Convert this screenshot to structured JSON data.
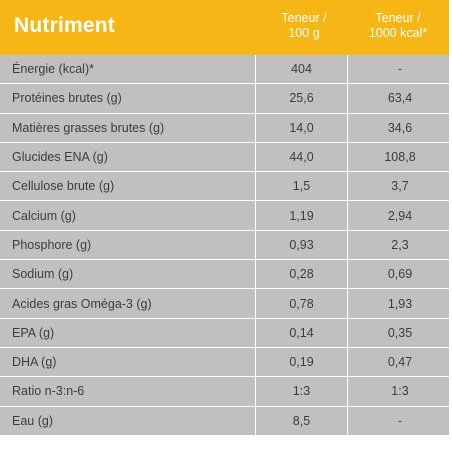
{
  "header": {
    "title": "Nutriment",
    "col1_line1": "Teneur /",
    "col1_line2": "100 g",
    "col2_line1": "Teneur /",
    "col2_line2": "1000 kcal*"
  },
  "colors": {
    "header_bg": "#f6b716",
    "row_bg": "#c0c0c0",
    "text": "#3c3c3c"
  },
  "rows": [
    {
      "label": "Énergie (kcal)*",
      "per100g": "404",
      "per1000kcal": "-"
    },
    {
      "label": "Protéines brutes (g)",
      "per100g": "25,6",
      "per1000kcal": "63,4"
    },
    {
      "label": "Matières grasses brutes (g)",
      "per100g": "14,0",
      "per1000kcal": "34,6"
    },
    {
      "label": "Glucides ENA (g)",
      "per100g": "44,0",
      "per1000kcal": "108,8"
    },
    {
      "label": "Cellulose brute (g)",
      "per100g": "1,5",
      "per1000kcal": "3,7"
    },
    {
      "label": "Calcium (g)",
      "per100g": "1,19",
      "per1000kcal": "2,94"
    },
    {
      "label": "Phosphore (g)",
      "per100g": "0,93",
      "per1000kcal": "2,3"
    },
    {
      "label": "Sodium (g)",
      "per100g": "0,28",
      "per1000kcal": "0,69"
    },
    {
      "label": "Acides gras Oméga-3 (g)",
      "per100g": "0,78",
      "per1000kcal": "1,93"
    },
    {
      "label": "EPA (g)",
      "per100g": "0,14",
      "per1000kcal": "0,35"
    },
    {
      "label": "DHA (g)",
      "per100g": "0,19",
      "per1000kcal": "0,47"
    },
    {
      "label": "Ratio n-3:n-6",
      "per100g": "1:3",
      "per1000kcal": "1:3"
    },
    {
      "label": "Eau (g)",
      "per100g": "8,5",
      "per1000kcal": "-"
    }
  ]
}
